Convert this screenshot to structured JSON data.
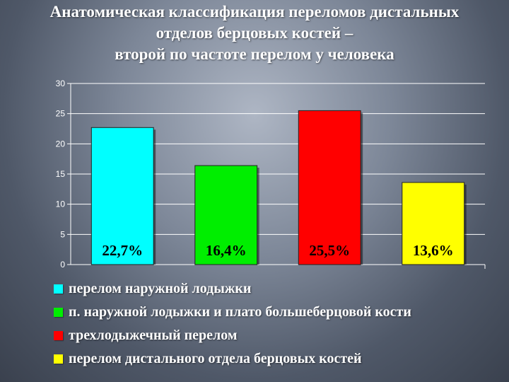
{
  "slide": {
    "title_lines": [
      "Анатомическая классификация переломов дистальных",
      "отделов берцовых костей –",
      "второй по частоте перелом у человека"
    ]
  },
  "chart_data": {
    "type": "bar",
    "title": "",
    "xlabel": "",
    "ylabel": "",
    "ylim": [
      0,
      30
    ],
    "yticks": [
      0,
      5,
      10,
      15,
      20,
      25,
      30
    ],
    "grid": true,
    "legend_position": "bottom",
    "categories": [
      "перелом наружной лодыжки",
      "п. наружной лодыжки и плато большеберцовой кости",
      "трехлодыжечный перелом",
      "перелом дистального отдела берцовых костей"
    ],
    "values": [
      22.7,
      16.4,
      25.5,
      13.6
    ],
    "data_labels": [
      "22,7%",
      "16,4%",
      "25,5%",
      "13,6%"
    ],
    "colors": [
      "#00ffff",
      "#00ee00",
      "#ff0000",
      "#ffff00"
    ]
  }
}
